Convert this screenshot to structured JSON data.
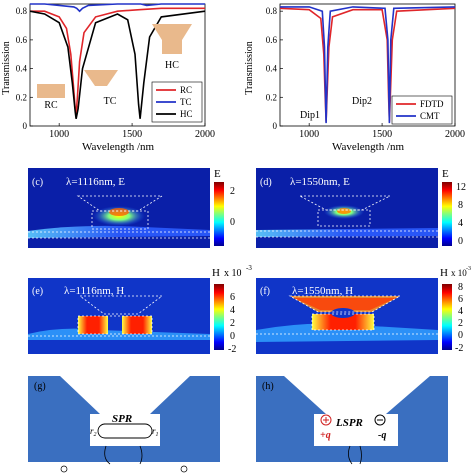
{
  "panel_a": {
    "ylabel": "Transmission",
    "xlabel": "Wavelength /nm",
    "yticks": [
      "0",
      "0.2",
      "0.4",
      "0.6",
      "0.8"
    ],
    "xticks": [
      "1000",
      "1500",
      "2000"
    ],
    "shape_labels": [
      "RC",
      "TC",
      "HC"
    ],
    "legend": [
      {
        "name": "RC",
        "color": "#e0262a"
      },
      {
        "name": "TC",
        "color": "#2233c8"
      },
      {
        "name": "HC",
        "color": "#000000"
      }
    ]
  },
  "panel_b": {
    "ylabel": "Transmission",
    "xlabel": "Wavelength /nm",
    "yticks": [
      "0",
      "0.2",
      "0.4",
      "0.6",
      "0.8"
    ],
    "xticks": [
      "1000",
      "1500",
      "2000"
    ],
    "dip_labels": [
      "Dip1",
      "Dip2"
    ],
    "legend": [
      {
        "name": "FDTD",
        "color": "#e0262a"
      },
      {
        "name": "CMT",
        "color": "#2233c8"
      }
    ]
  },
  "panel_c": {
    "letter": "(c)",
    "title": "λ=1116nm, E",
    "cb_label": "E",
    "cb_ticks": [
      "2",
      "0"
    ]
  },
  "panel_d": {
    "letter": "(d)",
    "title": "λ=1550nm, E",
    "cb_label": "E",
    "cb_ticks": [
      "12",
      "8",
      "4",
      "0"
    ]
  },
  "panel_e": {
    "letter": "(e)",
    "title": "λ=1116nm, H",
    "cb_label": "H",
    "cb_unit": "x 10",
    "cb_exp": "-3",
    "cb_ticks": [
      "6",
      "4",
      "2",
      "0",
      "-2"
    ]
  },
  "panel_f": {
    "letter": "(f)",
    "title": "λ=1550nm, H",
    "cb_label": "H",
    "cb_unit": "x 10",
    "cb_exp": "-3",
    "cb_ticks": [
      "8",
      "6",
      "4",
      "2",
      "0",
      "-2"
    ]
  },
  "panel_g": {
    "letter": "(g)",
    "mode": "SPR",
    "r_left": "r",
    "r_right": "r",
    "sub2": "2",
    "sub1": "1",
    "e_left": "E",
    "e_right": "E",
    "e_sub_left": "in",
    "e_sub_right": "t"
  },
  "panel_h": {
    "letter": "(h)",
    "mode": "LSPR",
    "plus": "+q",
    "minus": "-q",
    "e_left": "E",
    "e_right": "E"
  },
  "chart_data": [
    {
      "type": "line",
      "panel": "a",
      "xlabel": "Wavelength /nm",
      "ylabel": "Transmission",
      "xlim": [
        800,
        2000
      ],
      "ylim": [
        0,
        0.85
      ],
      "series": [
        {
          "name": "RC",
          "x": [
            800,
            900,
            1000,
            1050,
            1080,
            1100,
            1110,
            1116,
            1125,
            1140,
            1170,
            1250,
            1400,
            1550,
            1700,
            2000
          ],
          "y": [
            0.8,
            0.8,
            0.76,
            0.68,
            0.5,
            0.25,
            0.12,
            0.08,
            0.2,
            0.45,
            0.65,
            0.76,
            0.8,
            0.81,
            0.82,
            0.82
          ]
        },
        {
          "name": "TC",
          "x": [
            800,
            900,
            1000,
            1100,
            1120,
            1140,
            1160,
            1200,
            1400,
            1560,
            1600,
            1700,
            2000
          ],
          "y": [
            0.85,
            0.85,
            0.84,
            0.83,
            0.82,
            0.8,
            0.82,
            0.84,
            0.85,
            0.85,
            0.84,
            0.85,
            0.85
          ]
        },
        {
          "name": "HC",
          "x": [
            800,
            900,
            1000,
            1060,
            1090,
            1110,
            1116,
            1130,
            1160,
            1250,
            1400,
            1470,
            1520,
            1545,
            1555,
            1580,
            1620,
            1700,
            2000
          ],
          "y": [
            0.8,
            0.78,
            0.72,
            0.55,
            0.3,
            0.1,
            0.05,
            0.12,
            0.4,
            0.72,
            0.78,
            0.74,
            0.5,
            0.15,
            0.05,
            0.3,
            0.62,
            0.76,
            0.8
          ]
        }
      ]
    },
    {
      "type": "line",
      "panel": "b",
      "xlabel": "Wavelength /nm",
      "ylabel": "Transmission",
      "xlim": [
        800,
        2000
      ],
      "ylim": [
        0,
        0.85
      ],
      "series": [
        {
          "name": "FDTD",
          "x": [
            800,
            1000,
            1080,
            1100,
            1110,
            1116,
            1122,
            1135,
            1160,
            1300,
            1500,
            1535,
            1545,
            1550,
            1556,
            1570,
            1600,
            2000
          ],
          "y": [
            0.82,
            0.81,
            0.75,
            0.5,
            0.2,
            0.03,
            0.2,
            0.55,
            0.76,
            0.81,
            0.81,
            0.6,
            0.2,
            0.03,
            0.2,
            0.6,
            0.8,
            0.82
          ]
        },
        {
          "name": "CMT",
          "x": [
            800,
            1000,
            1090,
            1105,
            1112,
            1116,
            1120,
            1128,
            1145,
            1300,
            1520,
            1540,
            1547,
            1550,
            1553,
            1560,
            1580,
            2000
          ],
          "y": [
            0.83,
            0.83,
            0.8,
            0.55,
            0.2,
            0.02,
            0.2,
            0.55,
            0.8,
            0.83,
            0.82,
            0.6,
            0.2,
            0.02,
            0.2,
            0.6,
            0.82,
            0.83
          ]
        }
      ]
    }
  ]
}
